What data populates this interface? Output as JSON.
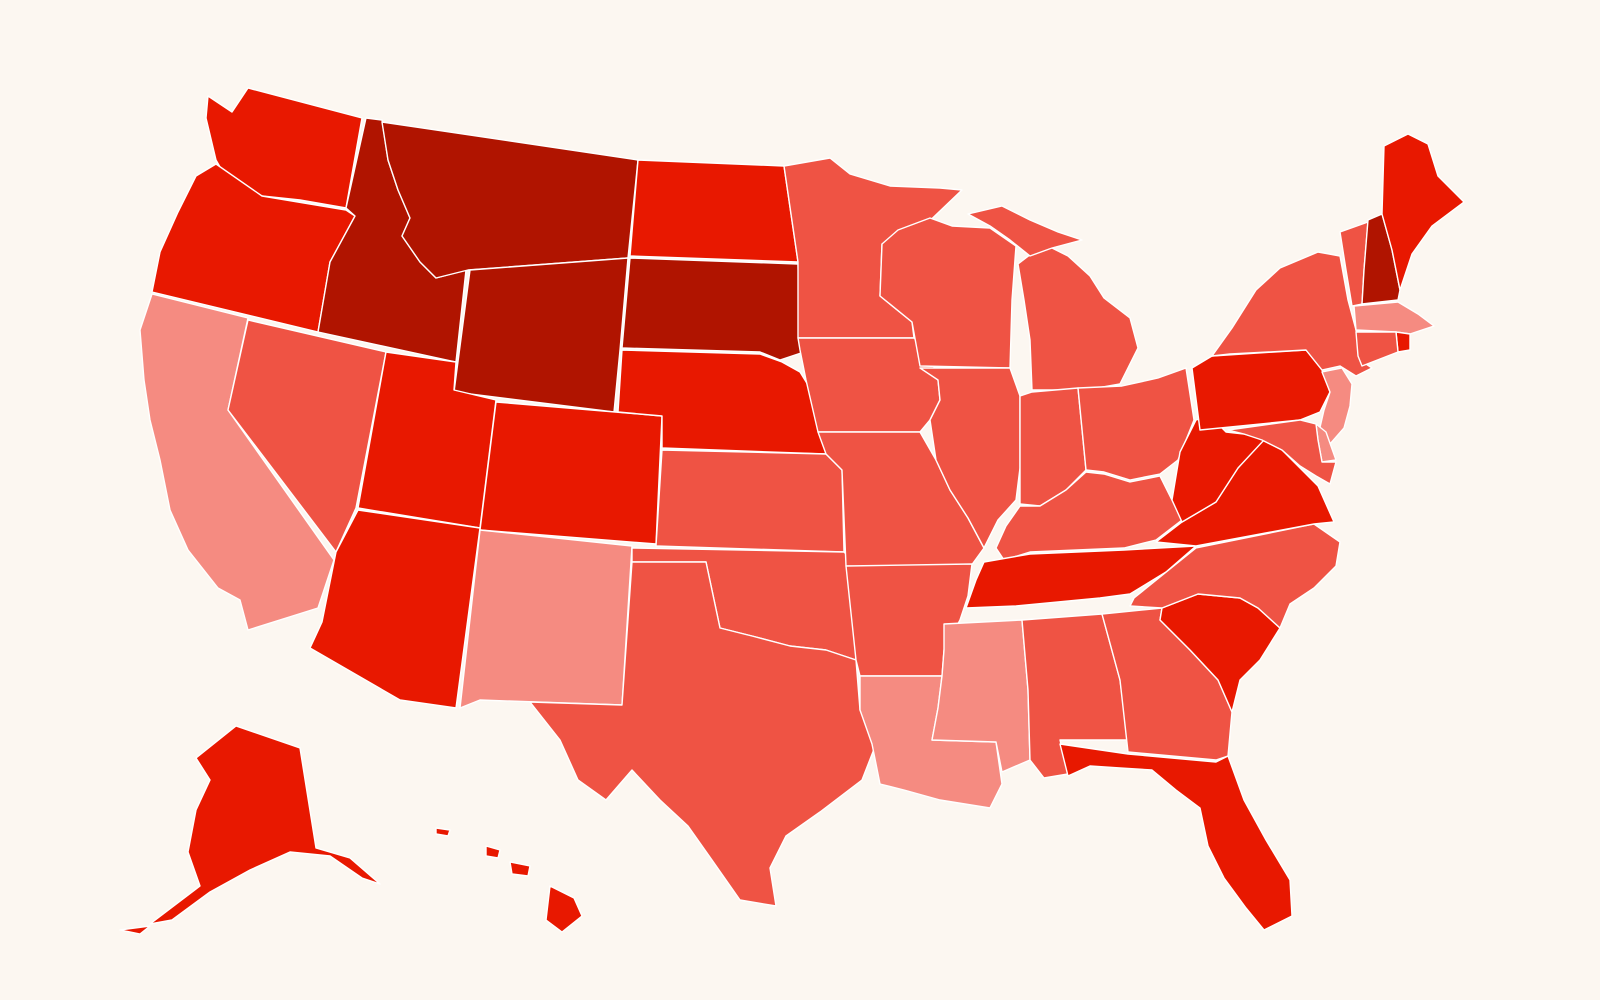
{
  "map": {
    "background": "#fcf7f1",
    "border_color": "#ffffff",
    "tier_colors": {
      "1": "#f58b81",
      "2": "#ef5344",
      "3": "#e81800",
      "4": "#b01400"
    },
    "states": [
      {
        "id": "WA",
        "tier": 3
      },
      {
        "id": "OR",
        "tier": 3
      },
      {
        "id": "CA",
        "tier": 1
      },
      {
        "id": "ID",
        "tier": 4
      },
      {
        "id": "NV",
        "tier": 2
      },
      {
        "id": "MT",
        "tier": 4
      },
      {
        "id": "WY",
        "tier": 4
      },
      {
        "id": "UT",
        "tier": 3
      },
      {
        "id": "AZ",
        "tier": 3
      },
      {
        "id": "CO",
        "tier": 3
      },
      {
        "id": "NM",
        "tier": 1
      },
      {
        "id": "ND",
        "tier": 3
      },
      {
        "id": "SD",
        "tier": 4
      },
      {
        "id": "NE",
        "tier": 3
      },
      {
        "id": "KS",
        "tier": 2
      },
      {
        "id": "OK",
        "tier": 2
      },
      {
        "id": "TX",
        "tier": 2
      },
      {
        "id": "MN",
        "tier": 2
      },
      {
        "id": "IA",
        "tier": 2
      },
      {
        "id": "MO",
        "tier": 2
      },
      {
        "id": "AR",
        "tier": 2
      },
      {
        "id": "LA",
        "tier": 1
      },
      {
        "id": "WI",
        "tier": 2
      },
      {
        "id": "IL",
        "tier": 2
      },
      {
        "id": "MI",
        "tier": 2
      },
      {
        "id": "IN",
        "tier": 2
      },
      {
        "id": "OH",
        "tier": 2
      },
      {
        "id": "KY",
        "tier": 2
      },
      {
        "id": "TN",
        "tier": 3
      },
      {
        "id": "MS",
        "tier": 1
      },
      {
        "id": "AL",
        "tier": 2
      },
      {
        "id": "GA",
        "tier": 2
      },
      {
        "id": "FL",
        "tier": 3
      },
      {
        "id": "SC",
        "tier": 3
      },
      {
        "id": "NC",
        "tier": 2
      },
      {
        "id": "VA",
        "tier": 3
      },
      {
        "id": "WV",
        "tier": 3
      },
      {
        "id": "PA",
        "tier": 3
      },
      {
        "id": "NY",
        "tier": 2
      },
      {
        "id": "VT",
        "tier": 2
      },
      {
        "id": "NH",
        "tier": 4
      },
      {
        "id": "ME",
        "tier": 3
      },
      {
        "id": "MA",
        "tier": 1
      },
      {
        "id": "RI",
        "tier": 3
      },
      {
        "id": "CT",
        "tier": 2
      },
      {
        "id": "NJ",
        "tier": 1
      },
      {
        "id": "DE",
        "tier": 1
      },
      {
        "id": "MD",
        "tier": 2
      },
      {
        "id": "AK",
        "tier": 3
      },
      {
        "id": "HI",
        "tier": 3
      }
    ]
  }
}
